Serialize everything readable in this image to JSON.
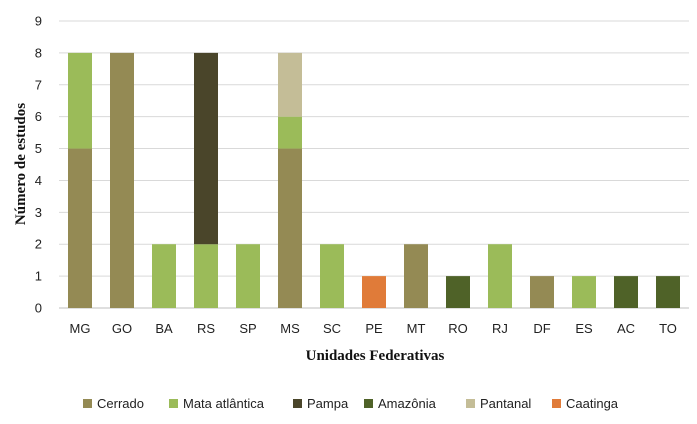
{
  "chart_data": {
    "type": "bar",
    "stacked": true,
    "xlabel": "Unidades Federativas",
    "ylabel": "Número de estudos",
    "ylim": [
      0,
      9
    ],
    "yticks": [
      0,
      1,
      2,
      3,
      4,
      5,
      6,
      7,
      8,
      9
    ],
    "grid": true,
    "legend_position": "bottom",
    "categories": [
      "MG",
      "GO",
      "BA",
      "RS",
      "SP",
      "MS",
      "SC",
      "PE",
      "MT",
      "RO",
      "RJ",
      "DF",
      "ES",
      "AC",
      "TO"
    ],
    "series": [
      {
        "name": "Cerrado",
        "color": "#948a54",
        "values": [
          5,
          8,
          0,
          0,
          0,
          5,
          0,
          0,
          2,
          0,
          0,
          1,
          0,
          0,
          0
        ]
      },
      {
        "name": "Mata atlântica",
        "color": "#9bbb59",
        "values": [
          3,
          0,
          2,
          2,
          2,
          1,
          2,
          0,
          0,
          0,
          2,
          0,
          1,
          0,
          0
        ]
      },
      {
        "name": "Pampa",
        "color": "#4a452a",
        "values": [
          0,
          0,
          0,
          6,
          0,
          0,
          0,
          0,
          0,
          0,
          0,
          0,
          0,
          0,
          0
        ]
      },
      {
        "name": "Amazônia",
        "color": "#4f6228",
        "values": [
          0,
          0,
          0,
          0,
          0,
          0,
          0,
          0,
          0,
          1,
          0,
          0,
          0,
          1,
          1
        ]
      },
      {
        "name": "Pantanal",
        "color": "#c4bd97",
        "values": [
          0,
          0,
          0,
          0,
          0,
          2,
          0,
          0,
          0,
          0,
          0,
          0,
          0,
          0,
          0
        ]
      },
      {
        "name": "Caatinga",
        "color": "#e07b39",
        "values": [
          0,
          0,
          0,
          0,
          0,
          0,
          0,
          1,
          0,
          0,
          0,
          0,
          0,
          0,
          0
        ]
      }
    ]
  }
}
